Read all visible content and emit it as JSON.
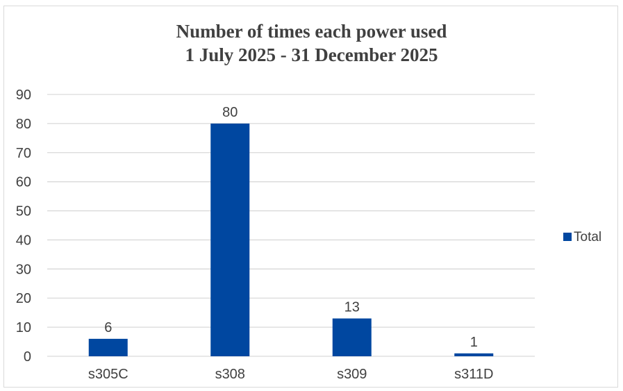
{
  "chart_data": {
    "type": "bar",
    "title": [
      "Number of times each power used",
      "1 July 2025 - 31 December 2025"
    ],
    "categories": [
      "s305C",
      "s308",
      "s309",
      "s311D"
    ],
    "series": [
      {
        "name": "Total",
        "values": [
          6,
          80,
          13,
          1
        ],
        "color": "#0047a0"
      }
    ],
    "ylim": [
      0,
      90
    ],
    "yticks": [
      0,
      10,
      20,
      30,
      40,
      50,
      60,
      70,
      80,
      90
    ],
    "grid": true,
    "legend": "right",
    "gridline_color": "#d9d9d9",
    "text_color": "#404040"
  }
}
